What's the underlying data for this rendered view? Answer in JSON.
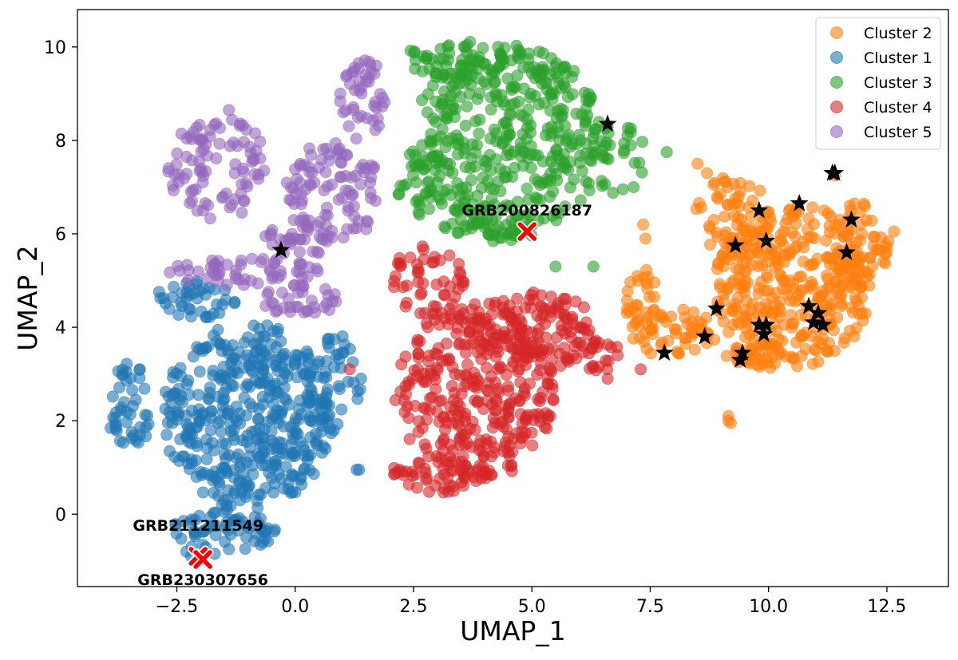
{
  "chart_data": {
    "type": "scatter",
    "title": "",
    "xlabel": "UMAP_1",
    "ylabel": "UMAP_2",
    "xlim": [
      -4.6,
      13.8
    ],
    "ylim": [
      -1.55,
      10.8
    ],
    "xticks": [
      -2.5,
      0.0,
      2.5,
      5.0,
      7.5,
      10.0,
      12.5
    ],
    "xtick_labels": [
      "−2.5",
      "0.0",
      "2.5",
      "5.0",
      "7.5",
      "10.0",
      "12.5"
    ],
    "yticks": [
      0,
      2,
      4,
      6,
      8,
      10
    ],
    "ytick_labels": [
      "0",
      "2",
      "4",
      "6",
      "8",
      "10"
    ],
    "grid": false,
    "legend_position": "top-right",
    "series": [
      {
        "name": "Cluster 2",
        "color": "#ff7f0e",
        "regions": [
          {
            "cx": 10.5,
            "cy": 4.9,
            "rx": 1.7,
            "ry": 1.75,
            "n": 330
          },
          {
            "cx": 9.3,
            "cy": 6.4,
            "rx": 0.85,
            "ry": 0.85,
            "n": 60
          },
          {
            "cx": 11.9,
            "cy": 5.7,
            "rx": 0.65,
            "ry": 1.0,
            "n": 55
          },
          {
            "cx": 8.0,
            "cy": 3.9,
            "rx": 0.9,
            "ry": 0.55,
            "n": 55
          },
          {
            "cx": 7.3,
            "cy": 4.6,
            "rx": 0.35,
            "ry": 0.7,
            "n": 22
          },
          {
            "cx": 10.0,
            "cy": 3.4,
            "rx": 0.9,
            "ry": 0.3,
            "n": 35
          }
        ],
        "points": [
          [
            7.35,
            6.2
          ],
          [
            7.4,
            5.9
          ],
          [
            9.15,
            2.1
          ],
          [
            9.2,
            1.95
          ],
          [
            9.15,
            2.0
          ],
          [
            12.65,
            6.05
          ],
          [
            12.5,
            5.7
          ],
          [
            11.4,
            7.25
          ],
          [
            8.5,
            7.5
          ],
          [
            8.7,
            7.3
          ]
        ]
      },
      {
        "name": "Cluster 1",
        "color": "#1f77b4",
        "regions": [
          {
            "cx": -1.0,
            "cy": 2.1,
            "rx": 1.8,
            "ry": 2.0,
            "n": 430
          },
          {
            "cx": -3.5,
            "cy": 2.3,
            "rx": 0.45,
            "ry": 1.0,
            "n": 45
          },
          {
            "cx": -1.5,
            "cy": -0.35,
            "rx": 1.1,
            "ry": 0.45,
            "n": 60
          },
          {
            "cx": -2.0,
            "cy": 4.6,
            "rx": 1.0,
            "ry": 0.4,
            "n": 40
          },
          {
            "cx": 0.8,
            "cy": 2.8,
            "rx": 0.6,
            "ry": 1.1,
            "n": 45
          }
        ],
        "points": [
          [
            -2.3,
            -0.8
          ],
          [
            -2.05,
            -0.95
          ],
          [
            -1.7,
            -0.85
          ],
          [
            -1.4,
            -0.75
          ],
          [
            1.35,
            0.95
          ],
          [
            1.3,
            0.95
          ],
          [
            -2.2,
            -0.9
          ]
        ]
      },
      {
        "name": "Cluster 3",
        "color": "#2ca02c",
        "regions": [
          {
            "cx": 4.5,
            "cy": 8.0,
            "rx": 2.0,
            "ry": 2.1,
            "n": 380
          },
          {
            "cx": 3.4,
            "cy": 9.7,
            "rx": 1.2,
            "ry": 0.45,
            "n": 50
          },
          {
            "cx": 6.5,
            "cy": 7.6,
            "rx": 0.9,
            "ry": 1.0,
            "n": 45
          },
          {
            "cx": 4.0,
            "cy": 6.2,
            "rx": 1.0,
            "ry": 0.45,
            "n": 40
          },
          {
            "cx": 2.6,
            "cy": 7.2,
            "rx": 0.5,
            "ry": 0.8,
            "n": 30
          }
        ],
        "points": [
          [
            7.85,
            7.75
          ],
          [
            6.6,
            8.3
          ],
          [
            7.15,
            7.0
          ],
          [
            5.5,
            5.3
          ],
          [
            6.3,
            5.3
          ]
        ]
      },
      {
        "name": "Cluster 4",
        "color": "#d62728",
        "regions": [
          {
            "cx": 3.8,
            "cy": 2.6,
            "rx": 1.7,
            "ry": 1.9,
            "n": 330
          },
          {
            "cx": 5.0,
            "cy": 3.9,
            "rx": 1.4,
            "ry": 0.9,
            "n": 120
          },
          {
            "cx": 3.0,
            "cy": 0.8,
            "rx": 1.1,
            "ry": 0.35,
            "n": 45
          },
          {
            "cx": 2.8,
            "cy": 5.0,
            "rx": 0.8,
            "ry": 0.75,
            "n": 50
          },
          {
            "cx": 6.3,
            "cy": 3.4,
            "rx": 0.6,
            "ry": 0.35,
            "n": 25
          }
        ],
        "points": [
          [
            7.3,
            3.1
          ],
          [
            6.6,
            2.9
          ],
          [
            5.5,
            4.4
          ],
          [
            1.15,
            3.1
          ],
          [
            2.2,
            0.95
          ]
        ]
      },
      {
        "name": "Cluster 5",
        "color": "#9467bd",
        "regions": [
          {
            "cx": -1.6,
            "cy": 7.4,
            "rx": 1.1,
            "ry": 1.1,
            "n": 90
          },
          {
            "cx": 0.8,
            "cy": 6.9,
            "rx": 1.0,
            "ry": 1.1,
            "n": 90
          },
          {
            "cx": 1.4,
            "cy": 8.9,
            "rx": 0.5,
            "ry": 0.9,
            "n": 45
          },
          {
            "cx": -1.1,
            "cy": 5.2,
            "rx": 1.6,
            "ry": 0.3,
            "n": 55
          },
          {
            "cx": 0.1,
            "cy": 4.6,
            "rx": 0.8,
            "ry": 0.4,
            "n": 35
          },
          {
            "cx": 0.2,
            "cy": 5.9,
            "rx": 0.9,
            "ry": 0.4,
            "n": 35
          }
        ],
        "points": [
          [
            -2.2,
            6.9
          ],
          [
            -1.4,
            8.65
          ],
          [
            1.5,
            6.1
          ]
        ]
      }
    ],
    "star_markers": [
      [
        6.6,
        8.35
      ],
      [
        -0.3,
        5.65
      ],
      [
        7.8,
        3.45
      ],
      [
        8.65,
        3.8
      ],
      [
        8.9,
        4.4
      ],
      [
        9.3,
        5.75
      ],
      [
        9.4,
        3.3
      ],
      [
        9.45,
        3.45
      ],
      [
        9.8,
        6.5
      ],
      [
        9.8,
        4.05
      ],
      [
        9.9,
        3.85
      ],
      [
        9.95,
        5.85
      ],
      [
        9.95,
        4.05
      ],
      [
        10.65,
        6.65
      ],
      [
        10.85,
        4.45
      ],
      [
        10.95,
        4.1
      ],
      [
        11.05,
        4.3
      ],
      [
        11.15,
        4.05
      ],
      [
        11.35,
        7.3
      ],
      [
        11.4,
        7.3
      ],
      [
        11.65,
        5.6
      ],
      [
        11.75,
        6.3
      ]
    ],
    "highlighted_points": [
      {
        "label": "GRB200826187",
        "x": 4.9,
        "y": 6.05
      },
      {
        "label": "GRB211211549",
        "x": -2.05,
        "y": -0.9
      },
      {
        "label": "GRB230307656",
        "x": -1.95,
        "y": -0.97
      }
    ],
    "marker_color": "#000000",
    "highlight_color": "#ff0000"
  }
}
